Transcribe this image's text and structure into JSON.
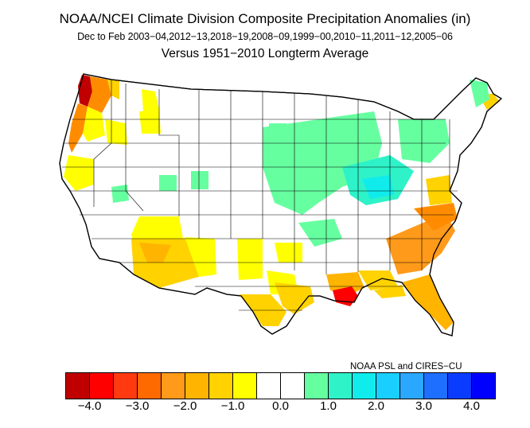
{
  "titles": {
    "line1": "NOAA/NCEI Climate Division Composite Precipitation Anomalies (in)",
    "line2": "Dec to Feb  2003−04,2012−13,2018−19,2008−09,1999−00,2010−11,2011−12,2005−06",
    "line3": "Versus 1951−2010 Longterm Average"
  },
  "credit": "NOAA PSL and CIRES−CU",
  "colorbar": {
    "colors": [
      "#c00000",
      "#ff0000",
      "#ff3a10",
      "#ff6a00",
      "#ff9a1a",
      "#ffb400",
      "#ffd200",
      "#ffff00",
      "#ffffff",
      "#ffffff",
      "#66ffa0",
      "#2ef2c8",
      "#10ecec",
      "#19cfff",
      "#2aa8ff",
      "#1e6eff",
      "#0a3cff",
      "#0000ff"
    ],
    "tick_labels": [
      "−4.0",
      "−3.0",
      "−2.0",
      "−1.0",
      "0.0",
      "1.0",
      "2.0",
      "3.0",
      "4.0"
    ]
  },
  "legend_colors": {
    "dark_red": "#c00000",
    "red": "#ff0000",
    "orange": "#ff8c00",
    "light_orange": "#ffb400",
    "gold": "#ffd200",
    "yellow": "#ffff00",
    "mint": "#66ffa0",
    "aqua": "#2ef2c8",
    "cyan": "#10ecec"
  }
}
